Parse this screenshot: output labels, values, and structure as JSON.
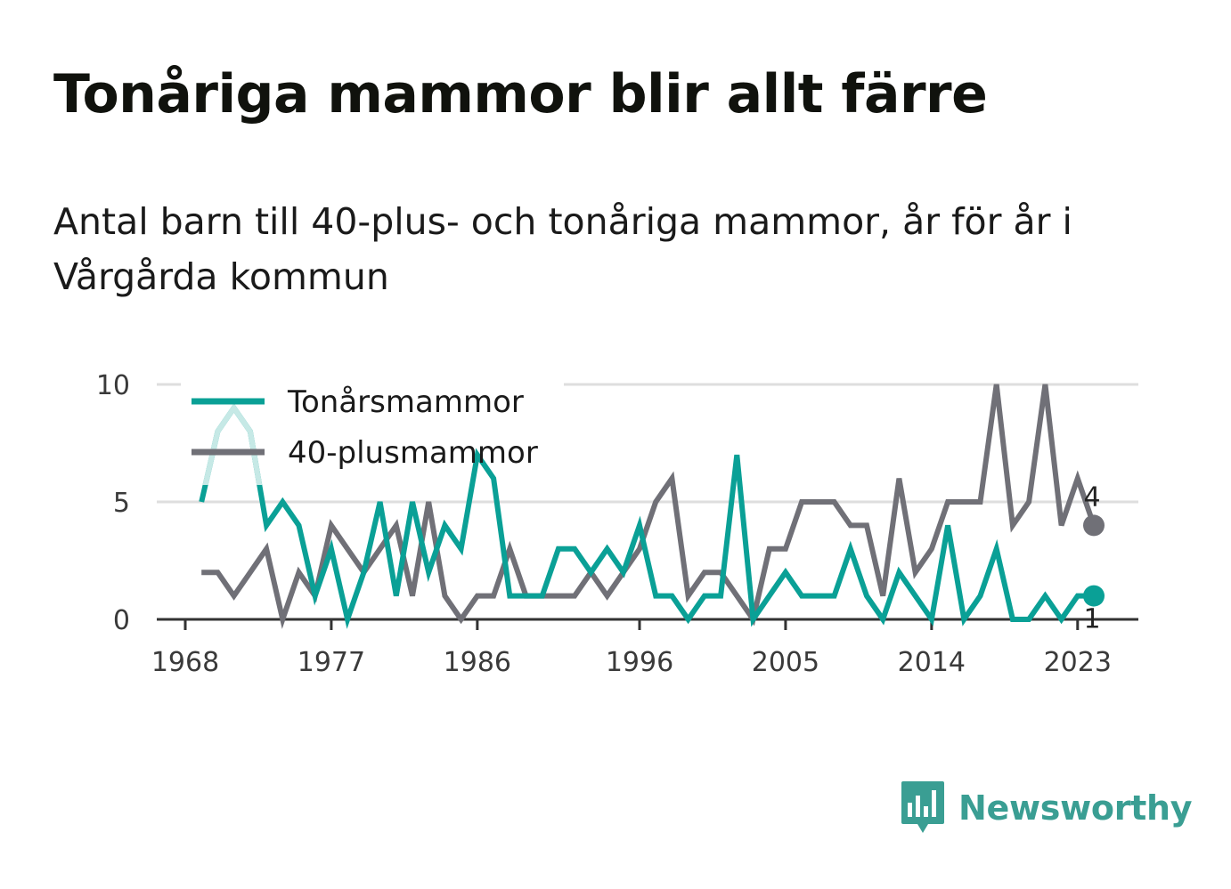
{
  "title": "Tonåriga mammor blir allt färre",
  "subtitle": "Antal barn till 40-plus- och tonåriga mammor, år för år i Vårgårda kommun",
  "brand": {
    "name": "Newsworthy",
    "icon": "bar-chart-speech-bubble-icon",
    "color": "#3a9e93"
  },
  "chart_data": {
    "type": "line",
    "title": "Tonåriga mammor blir allt färre",
    "subtitle": "Antal barn till 40-plus- och tonåriga mammor, år för år i Vårgårda kommun",
    "xlabel": "",
    "ylabel": "",
    "x": [
      1968,
      1969,
      1970,
      1971,
      1972,
      1973,
      1974,
      1975,
      1976,
      1977,
      1978,
      1979,
      1980,
      1981,
      1982,
      1983,
      1984,
      1985,
      1986,
      1987,
      1988,
      1989,
      1990,
      1991,
      1992,
      1993,
      1994,
      1995,
      1996,
      1997,
      1998,
      1999,
      2000,
      2001,
      2002,
      2003,
      2004,
      2005,
      2006,
      2007,
      2008,
      2009,
      2010,
      2011,
      2012,
      2013,
      2014,
      2015,
      2016,
      2017,
      2018,
      2019,
      2020,
      2021,
      2022,
      2023,
      2024
    ],
    "xlim": [
      1968,
      2024
    ],
    "ylim": [
      0,
      10
    ],
    "x_ticks": [
      {
        "value": 1968,
        "label": "1968"
      },
      {
        "value": 1977,
        "label": "1977"
      },
      {
        "value": 1986,
        "label": "1986"
      },
      {
        "value": 1996,
        "label": "1996"
      },
      {
        "value": 2005,
        "label": "2005"
      },
      {
        "value": 2014,
        "label": "2014"
      },
      {
        "value": 2023,
        "label": "2023"
      }
    ],
    "y_ticks": [
      {
        "value": 0,
        "label": "0"
      },
      {
        "value": 5,
        "label": "5"
      },
      {
        "value": 10,
        "label": "10"
      }
    ],
    "grid": true,
    "legend_position": "top-left",
    "series": [
      {
        "name": "Tonårsmammor",
        "color": "#0aa096",
        "faded_color": "#c6e9e6",
        "values": [
          null,
          5,
          8,
          9,
          8,
          4,
          5,
          4,
          1,
          3,
          0,
          2,
          5,
          1,
          5,
          2,
          4,
          3,
          7,
          6,
          1,
          1,
          1,
          3,
          3,
          2,
          3,
          2,
          4,
          1,
          1,
          0,
          1,
          1,
          7,
          0,
          1,
          2,
          1,
          1,
          1,
          3,
          1,
          0,
          2,
          1,
          0,
          4,
          0,
          1,
          3,
          0,
          0,
          1,
          0,
          1,
          1
        ],
        "end_label": "1"
      },
      {
        "name": "40-plusmammor",
        "color": "#707077",
        "values": [
          null,
          2,
          2,
          1,
          2,
          3,
          0,
          2,
          1,
          4,
          3,
          2,
          3,
          4,
          1,
          5,
          1,
          0,
          1,
          1,
          3,
          1,
          1,
          1,
          1,
          2,
          1,
          2,
          3,
          5,
          6,
          1,
          2,
          2,
          1,
          0,
          3,
          3,
          5,
          5,
          5,
          4,
          4,
          1,
          6,
          2,
          3,
          5,
          5,
          5,
          10,
          4,
          5,
          10,
          4,
          6,
          4
        ],
        "end_label": "4"
      }
    ]
  }
}
